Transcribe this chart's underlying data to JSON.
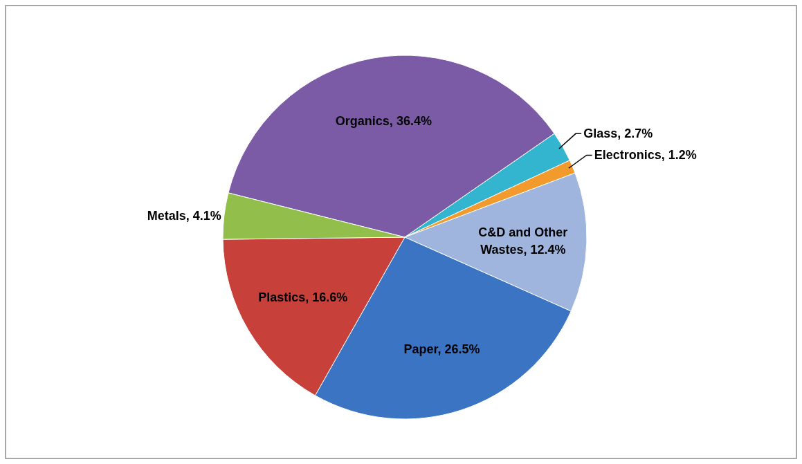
{
  "chart_data": {
    "type": "pie",
    "categories": [
      "Organics",
      "Glass",
      "Electronics",
      "C&D and Other Wastes",
      "Paper",
      "Plastics",
      "Metals"
    ],
    "values": [
      36.4,
      2.7,
      1.2,
      12.4,
      26.5,
      16.6,
      4.1
    ],
    "value_labels": [
      "36.4%",
      "2.7%",
      "1.2%",
      "12.4%",
      "26.5%",
      "16.6%",
      "4.1%"
    ],
    "colors": [
      "#7b5aa6",
      "#33b5d0",
      "#f39a2c",
      "#9fb5de",
      "#3c74c4",
      "#c8403a",
      "#92bf4c"
    ]
  }
}
